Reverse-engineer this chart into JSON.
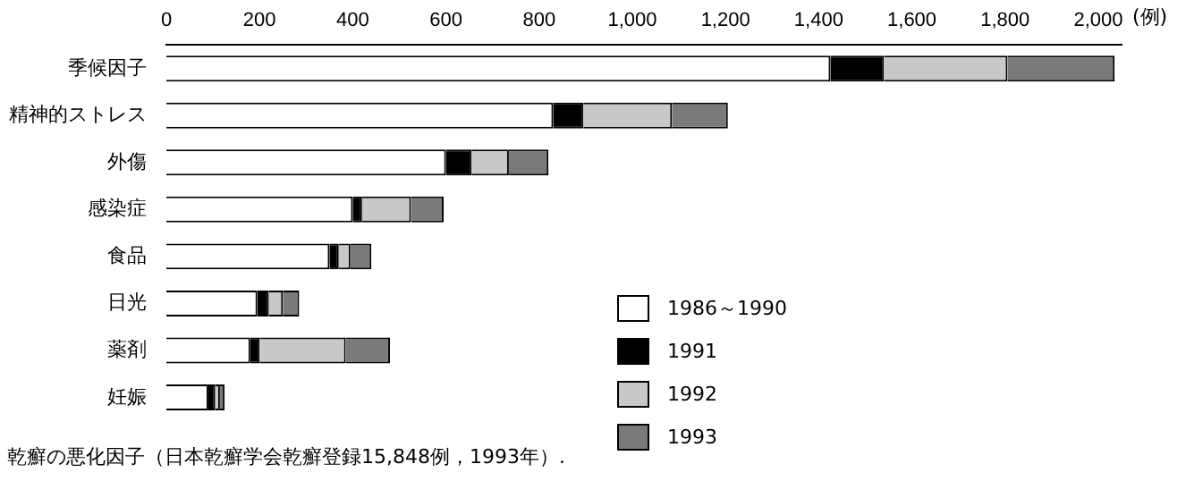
{
  "chart_data": {
    "type": "bar",
    "orientation": "horizontal",
    "stacked": true,
    "title": "乾癬の悪化因子（日本乾癬学会乾癬登録15,848例，1993年）.",
    "xlabel": "(例)",
    "categories": [
      "季候因子",
      "精神的ストレス",
      "外傷",
      "感染症",
      "食品",
      "日光",
      "薬剤",
      "妊娠"
    ],
    "series": [
      {
        "name": "1986～1990",
        "color": "#ffffff",
        "values": [
          1425,
          830,
          600,
          400,
          350,
          195,
          180,
          90
        ]
      },
      {
        "name": "1991",
        "color": "#000000",
        "values": [
          115,
          65,
          55,
          20,
          20,
          25,
          20,
          15
        ]
      },
      {
        "name": "1992",
        "color": "#c8c8c8",
        "values": [
          265,
          190,
          80,
          105,
          25,
          30,
          185,
          10
        ]
      },
      {
        "name": "1993",
        "color": "#7a7a7a",
        "values": [
          230,
          120,
          85,
          70,
          45,
          35,
          95,
          10
        ]
      }
    ],
    "xlim": [
      0,
      2050
    ],
    "xticks": [
      0,
      200,
      400,
      600,
      800,
      {
        "value": 1000,
        "label": "1,000"
      },
      {
        "value": 1200,
        "label": "1,200"
      },
      {
        "value": 1400,
        "label": "1,400"
      },
      {
        "value": 1600,
        "label": "1,600"
      },
      {
        "value": 1800,
        "label": "1,800"
      },
      {
        "value": 2000,
        "label": "2,000"
      }
    ],
    "grid": false,
    "legend": "bottom right"
  }
}
